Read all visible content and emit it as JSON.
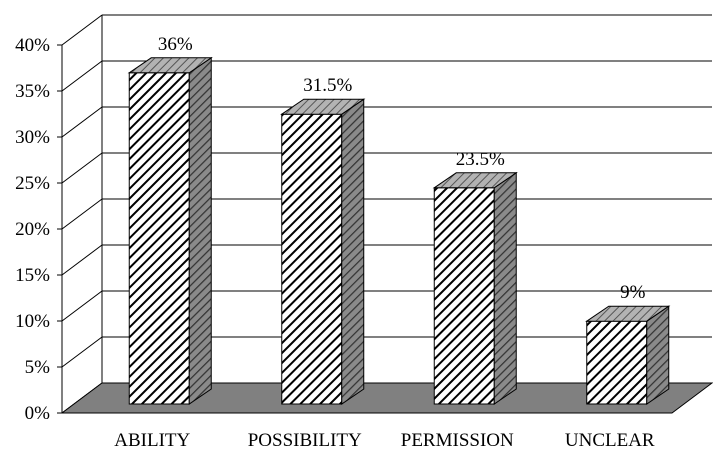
{
  "chart_data": {
    "type": "bar",
    "style": "3d-column",
    "categories": [
      "ABILITY",
      "POSSIBILITY",
      "PERMISSION",
      "UNCLEAR"
    ],
    "values": [
      36,
      31.5,
      23.5,
      9
    ],
    "data_labels": [
      "36%",
      "31.5%",
      "23.5%",
      "9%"
    ],
    "y_ticks": [
      "0%",
      "5%",
      "10%",
      "15%",
      "20%",
      "25%",
      "30%",
      "35%",
      "40%"
    ],
    "ylim": [
      0,
      40
    ],
    "y_unit": "%",
    "title": "",
    "xlabel": "",
    "ylabel": "",
    "grid": "horizontal",
    "legend": "none",
    "colors": {
      "bar_front": "#ffffff",
      "bar_hatch": "#000000",
      "bar_side": "#7a7a7a",
      "bar_top": "#a6a6a6",
      "floor": "#808080",
      "grid": "#000000"
    }
  }
}
